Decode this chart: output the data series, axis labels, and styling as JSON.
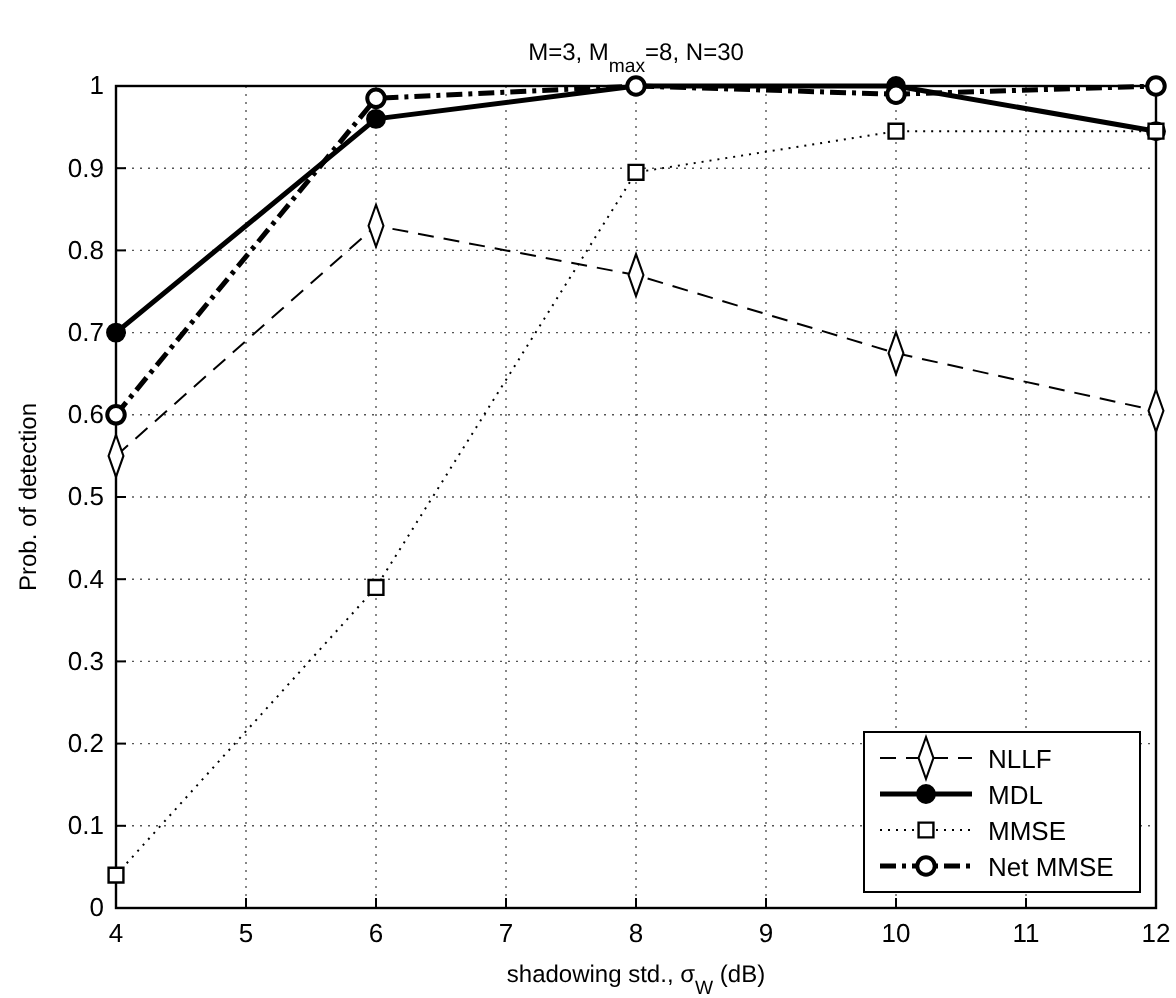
{
  "chart_data": {
    "type": "line",
    "title": "M=3, M$_{max}$=8, N=30",
    "xlabel": "shadowing std., σ$_{W}$ (dB)",
    "ylabel": "Prob. of detection",
    "x": [
      4,
      6,
      8,
      10,
      12
    ],
    "xlim": [
      4,
      12
    ],
    "xticks": [
      4,
      5,
      6,
      7,
      8,
      9,
      10,
      11,
      12
    ],
    "ylim": [
      0,
      1
    ],
    "yticks": [
      0,
      0.1,
      0.2,
      0.3,
      0.4,
      0.5,
      0.6,
      0.7,
      0.8,
      0.9,
      1
    ],
    "grid": true,
    "legend": "bottom right",
    "series": [
      {
        "name": "NLLF",
        "color": "#000000",
        "values": [
          0.55,
          0.83,
          0.77,
          0.675,
          0.605
        ],
        "marker": "diamond",
        "line_style": "dashed"
      },
      {
        "name": "MDL",
        "color": "#000000",
        "values": [
          0.7,
          0.96,
          1.0,
          1.0,
          0.945
        ],
        "marker": "circle",
        "line_style": "solid"
      },
      {
        "name": "MMSE",
        "color": "#000000",
        "values": [
          0.04,
          0.39,
          0.895,
          0.945,
          0.945
        ],
        "marker": "square",
        "line_style": "dotted"
      },
      {
        "name": "Net MMSE",
        "color": "#000000",
        "values": [
          0.6,
          0.985,
          1.0,
          0.99,
          1.0
        ],
        "marker": "circle",
        "line_style": "dashdot"
      }
    ]
  }
}
